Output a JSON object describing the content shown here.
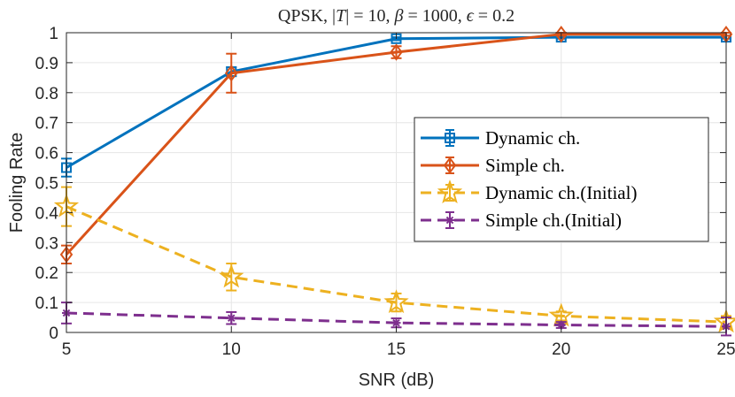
{
  "chart_data": {
    "type": "line",
    "title": "QPSK, |T| = 10, β = 1000, ε = 0.2",
    "title_parts": {
      "prefix": "QPSK, ",
      "t_var": "T",
      "t_tail": " = 10, ",
      "beta": "β",
      "beta_tail": " = 1000, ",
      "eps": "ϵ",
      "eps_tail": " = 0.2"
    },
    "xlabel": "SNR (dB)",
    "ylabel": "Fooling Rate",
    "xlim": [
      5,
      25
    ],
    "ylim": [
      0,
      1
    ],
    "xticks": [
      5,
      10,
      15,
      20,
      25
    ],
    "xtick_labels": [
      "5",
      "10",
      "15",
      "20",
      "25"
    ],
    "yticks": [
      0,
      0.1,
      0.2,
      0.3,
      0.4,
      0.5,
      0.6,
      0.7,
      0.8,
      0.9,
      1
    ],
    "ytick_labels": [
      "0",
      "0.1",
      "0.2",
      "0.3",
      "0.4",
      "0.5",
      "0.6",
      "0.7",
      "0.8",
      "0.9",
      "1"
    ],
    "grid": true,
    "legend_position": "right",
    "x": [
      5,
      10,
      15,
      20,
      25
    ],
    "series": [
      {
        "name": "Dynamic ch.",
        "color": "#0072BD",
        "dash": "solid",
        "marker": "square",
        "values": [
          0.55,
          0.87,
          0.98,
          0.985,
          0.985
        ],
        "errors": [
          0.03,
          0.015,
          0.005,
          0.005,
          0.005
        ]
      },
      {
        "name": "Simple ch.",
        "color": "#D95319",
        "dash": "solid",
        "marker": "diamond",
        "values": [
          0.26,
          0.865,
          0.935,
          0.995,
          0.995
        ],
        "errors": [
          0.03,
          0.065,
          0.02,
          0.005,
          0.005
        ]
      },
      {
        "name": "Dynamic ch.(Initial)",
        "color": "#EDB120",
        "dash": "dashed",
        "marker": "star",
        "values": [
          0.42,
          0.185,
          0.1,
          0.055,
          0.035
        ],
        "errors": [
          0.065,
          0.045,
          0.03,
          0.015,
          0.02
        ]
      },
      {
        "name": "Simple ch.(Initial)",
        "color": "#7E2F8E",
        "dash": "dashed",
        "marker": "asterisk",
        "values": [
          0.065,
          0.048,
          0.032,
          0.025,
          0.02
        ],
        "errors": [
          0.035,
          0.02,
          0.015,
          0.01,
          0.03
        ]
      }
    ]
  }
}
